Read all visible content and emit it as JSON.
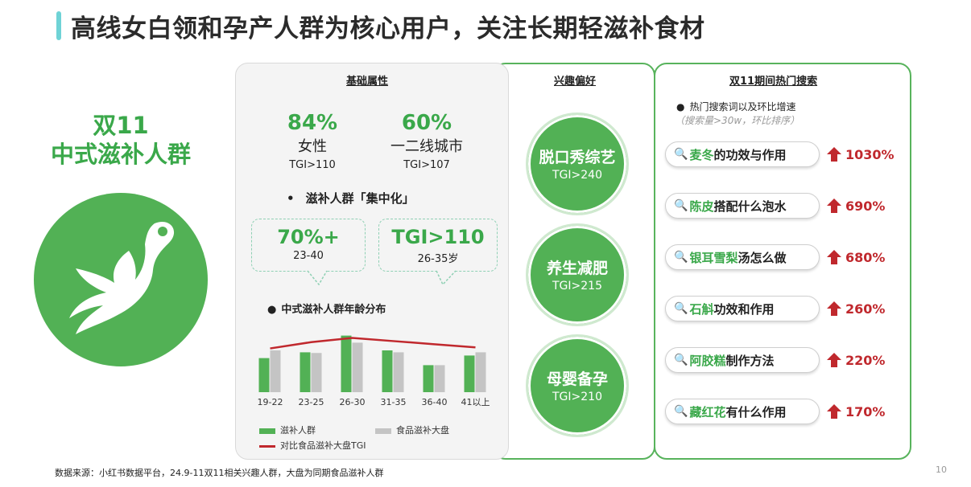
{
  "title": "高线女白领和孕产人群为核心用户，关注长期轻滋补食材",
  "persona": {
    "line1": "双11",
    "line2": "中式滋补人群"
  },
  "basic": {
    "heading": "基础属性",
    "gender": {
      "value": "84%",
      "label": "女性",
      "tgi": "TGI>110"
    },
    "city": {
      "value": "60%",
      "label": "一二线城市",
      "tgi": "TGI>107"
    },
    "bullet": "滋补人群「集中化」",
    "bubble_left": {
      "value": "70%+",
      "sub": "23-40"
    },
    "bubble_right": {
      "value": "TGI>110",
      "sub": "26-35岁"
    },
    "chart_title": "中式滋补人群年龄分布"
  },
  "chart_data": {
    "type": "bar",
    "title": "中式滋补人群年龄分布",
    "categories": [
      "19-22",
      "23-25",
      "26-30",
      "31-35",
      "36-40",
      "41以上"
    ],
    "series": [
      {
        "name": "滋补人群",
        "values": [
          53,
          62,
          88,
          65,
          42,
          57
        ],
        "color": "#52b155"
      },
      {
        "name": "食品滋补大盘",
        "values": [
          65,
          61,
          77,
          62,
          42,
          62
        ],
        "color": "#c4c4c4"
      }
    ],
    "line_series": {
      "name": "对比食品滋补大盘TGI",
      "values": [
        103,
        109,
        113,
        110,
        107,
        104
      ],
      "color": "#c0282d"
    },
    "legend": "bottom"
  },
  "interest": {
    "heading": "兴趣偏好",
    "items": [
      {
        "name": "脱口秀综艺",
        "tgi": "TGI>240"
      },
      {
        "name": "养生减肥",
        "tgi": "TGI>215"
      },
      {
        "name": "母婴备孕",
        "tgi": "TGI>210"
      }
    ]
  },
  "search": {
    "heading": "双11期间热门搜索",
    "sub1": "热门搜索词以及环比增速",
    "sub2": "（搜索量>30w，环比排序）",
    "items": [
      {
        "highlight": "麦冬",
        "rest": "的功效与作用",
        "growth": "1030%"
      },
      {
        "highlight": "陈皮",
        "rest": "搭配什么泡水",
        "growth": "690%"
      },
      {
        "highlight": "银耳雪梨",
        "rest": "汤怎么做",
        "growth": "680%"
      },
      {
        "highlight": "石斛",
        "rest": "功效和作用",
        "growth": "260%"
      },
      {
        "highlight": "阿胶糕",
        "rest": "制作方法",
        "growth": "220%"
      },
      {
        "highlight": "藏红花",
        "rest": "有什么作用",
        "growth": "170%"
      }
    ]
  },
  "source": "数据来源：小红书数据平台，24.9-11双11相关兴趣人群，大盘为同期食品滋补人群",
  "page_number": "10",
  "colors": {
    "brand_green": "#3aa84a",
    "circle_green": "#52b155",
    "growth_red": "#c0282d",
    "accent_teal": "#6fd3d6"
  }
}
